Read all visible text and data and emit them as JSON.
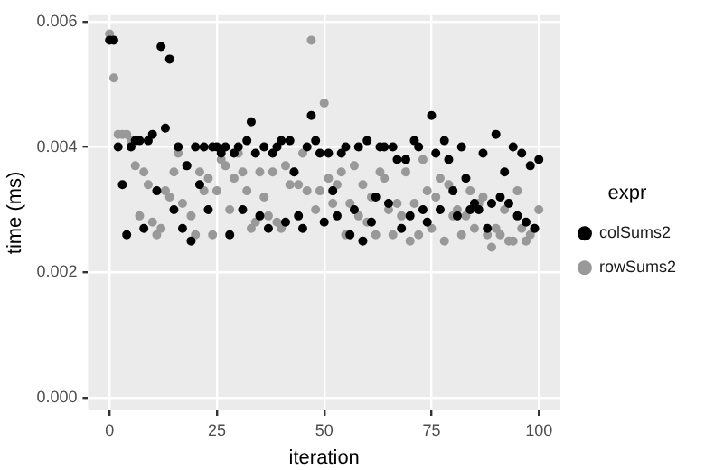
{
  "chart_data": {
    "type": "scatter",
    "xlabel": "iteration",
    "ylabel": "time (ms)",
    "legend_title": "expr",
    "legend": "right",
    "grid": true,
    "marker": "circle",
    "xlim": [
      -5,
      105
    ],
    "xticks": [
      0,
      25,
      50,
      75,
      100
    ],
    "ylim": [
      -0.0002,
      0.0061
    ],
    "yticks": [
      {
        "value": 0,
        "label": "0.000"
      },
      0.002,
      0.004,
      0.006
    ],
    "x": [
      0,
      1,
      2,
      3,
      4,
      5,
      6,
      7,
      8,
      9,
      10,
      11,
      12,
      13,
      14,
      15,
      16,
      17,
      18,
      19,
      20,
      21,
      22,
      23,
      24,
      25,
      26,
      27,
      28,
      29,
      30,
      31,
      32,
      33,
      34,
      35,
      36,
      37,
      38,
      39,
      40,
      41,
      42,
      43,
      44,
      45,
      46,
      47,
      48,
      49,
      50,
      51,
      52,
      53,
      54,
      55,
      56,
      57,
      58,
      59,
      60,
      61,
      62,
      63,
      64,
      65,
      66,
      67,
      68,
      69,
      70,
      71,
      72,
      73,
      74,
      75,
      76,
      77,
      78,
      79,
      80,
      81,
      82,
      83,
      84,
      85,
      86,
      87,
      88,
      89,
      90,
      91,
      92,
      93,
      94,
      95,
      96,
      97,
      98,
      99,
      100
    ],
    "series": [
      {
        "name": "colSums2",
        "color": "#000000",
        "values": [
          0.0057,
          0.0057,
          0.004,
          0.0034,
          0.0026,
          0.004,
          0.0041,
          0.0041,
          0.0027,
          0.0041,
          0.0042,
          0.0033,
          0.0056,
          0.0043,
          0.0054,
          0.003,
          0.004,
          0.0027,
          0.0037,
          0.0025,
          0.004,
          0.0034,
          0.004,
          0.003,
          0.004,
          0.004,
          0.0039,
          0.004,
          0.0026,
          0.0039,
          0.004,
          0.003,
          0.0041,
          0.0044,
          0.0039,
          0.0029,
          0.004,
          0.0027,
          0.0039,
          0.004,
          0.0041,
          0.0028,
          0.0041,
          0.0036,
          0.0029,
          0.0027,
          0.004,
          0.0045,
          0.0041,
          0.0039,
          0.0028,
          0.0039,
          0.0033,
          0.0029,
          0.0039,
          0.004,
          0.0026,
          0.003,
          0.004,
          0.0025,
          0.0041,
          0.0028,
          0.0032,
          0.004,
          0.004,
          0.0031,
          0.004,
          0.0038,
          0.0027,
          0.0038,
          0.0029,
          0.0041,
          0.004,
          0.003,
          0.0028,
          0.0045,
          0.0039,
          0.003,
          0.0041,
          0.0038,
          0.0033,
          0.0029,
          0.004,
          0.0035,
          0.003,
          0.0031,
          0.003,
          0.0039,
          0.0027,
          0.0031,
          0.0042,
          0.0032,
          0.0036,
          0.0031,
          0.004,
          0.0029,
          0.0039,
          0.0028,
          0.0037,
          0.0027,
          0.0038
        ]
      },
      {
        "name": "rowSums2",
        "color": "#999999",
        "values": [
          0.0058,
          0.0051,
          0.0042,
          0.0042,
          0.0042,
          0.0041,
          0.0037,
          0.0029,
          0.0036,
          0.0034,
          0.0028,
          0.0026,
          0.0027,
          0.0033,
          0.0032,
          0.0036,
          0.0039,
          0.0031,
          0.0037,
          0.0029,
          0.0026,
          0.0036,
          0.0033,
          0.0035,
          0.0026,
          0.0033,
          0.0038,
          0.0037,
          0.003,
          0.0035,
          0.0039,
          0.0036,
          0.0033,
          0.0027,
          0.0028,
          0.0036,
          0.0032,
          0.0029,
          0.0036,
          0.0028,
          0.0027,
          0.0037,
          0.0034,
          0.0036,
          0.0034,
          0.0039,
          0.0033,
          0.0057,
          0.003,
          0.0033,
          0.0047,
          0.0035,
          0.0031,
          0.0034,
          0.0036,
          0.0026,
          0.0031,
          0.0037,
          0.0029,
          0.0034,
          0.0028,
          0.0032,
          0.0026,
          0.0036,
          0.0035,
          0.003,
          0.0026,
          0.0031,
          0.0029,
          0.0036,
          0.0025,
          0.0031,
          0.0026,
          0.0038,
          0.0033,
          0.0027,
          0.0032,
          0.0035,
          0.0025,
          0.0034,
          0.0029,
          0.003,
          0.0026,
          0.0029,
          0.0033,
          0.0027,
          0.0031,
          0.0032,
          0.0026,
          0.0024,
          0.0027,
          0.0026,
          0.003,
          0.0025,
          0.0025,
          0.0033,
          0.0027,
          0.0025,
          0.0026,
          0.0027,
          0.003
        ]
      }
    ]
  }
}
